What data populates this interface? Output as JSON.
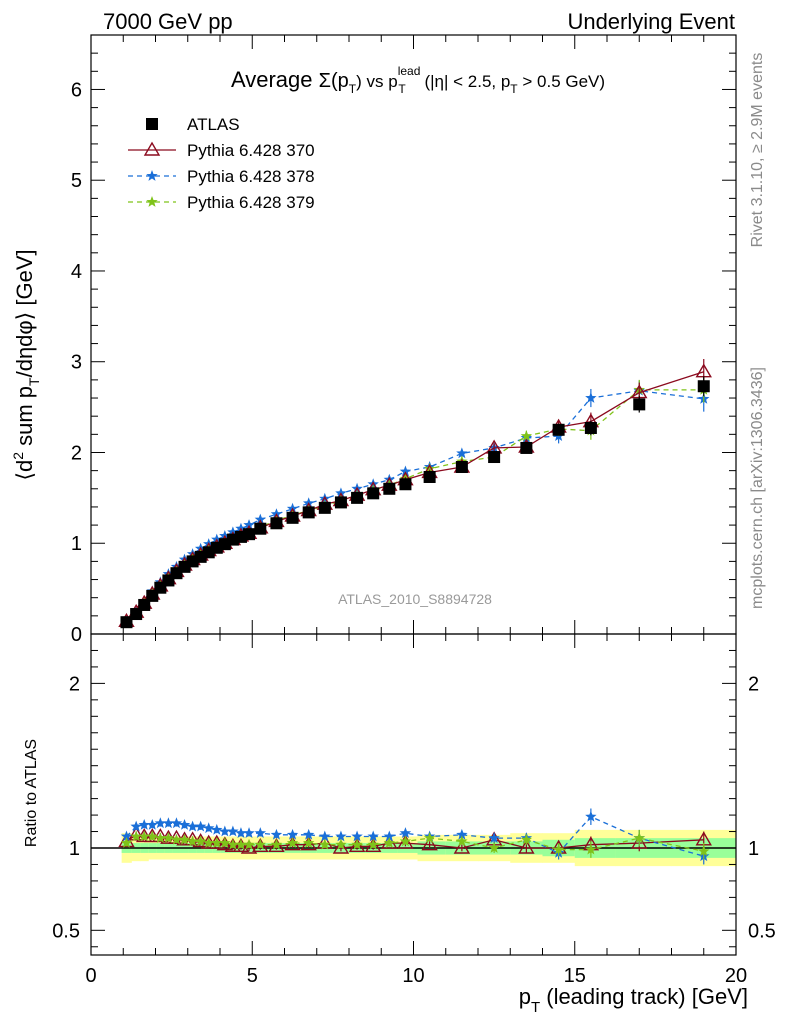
{
  "header": {
    "left": "7000 GeV pp",
    "right": "Underlying Event"
  },
  "title": {
    "prefix": "Average",
    "sigma": "Σ(p",
    "sub_t": "T",
    "close": ")",
    "vs": " vs p",
    "sup_lead": "lead",
    "sub_t2": "T",
    "cond_a": " (|η| < 2.5, p",
    "sub_t3": "T",
    "cond_b": " > 0.5 GeV)"
  },
  "ylabel_main": {
    "a": "⟨d",
    "sup2": "2",
    "b": " sum p",
    "subT": "T",
    "c": "/dηdφ⟩ [GeV]"
  },
  "ylabel_ratio": "Ratio to ATLAS",
  "xlabel": {
    "p": "p",
    "subT": "T",
    "rest": " (leading track) [GeV]"
  },
  "side_right": "Rivet 3.1.10, ≥ 2.9M events",
  "side_right2": "mcplots.cern.ch [arXiv:1306.3436]",
  "analysis_id": "ATLAS_2010_S8894728",
  "legend": [
    {
      "name": "ATLAS",
      "color": "#000000",
      "marker": "square",
      "dash": "none"
    },
    {
      "name": "Pythia 6.428 370",
      "color": "#8b0a1e",
      "marker": "triangle",
      "dash": "solid"
    },
    {
      "name": "Pythia 6.428 378",
      "color": "#1a6fd8",
      "marker": "star",
      "dash": "dashed"
    },
    {
      "name": "Pythia 6.428 379",
      "color": "#7fc31a",
      "marker": "star",
      "dash": "dashed"
    }
  ],
  "chart_data": {
    "type": "line",
    "x": [
      1.1,
      1.4,
      1.65,
      1.9,
      2.15,
      2.4,
      2.65,
      2.9,
      3.15,
      3.4,
      3.65,
      3.9,
      4.15,
      4.4,
      4.65,
      4.9,
      5.25,
      5.75,
      6.25,
      6.75,
      7.25,
      7.75,
      8.25,
      8.75,
      9.25,
      9.75,
      10.5,
      11.5,
      12.5,
      13.5,
      14.5,
      15.5,
      17.0,
      19.0
    ],
    "xlim": [
      0,
      20
    ],
    "main": {
      "ylim": [
        0,
        6.6
      ],
      "yticks": [
        0,
        1,
        2,
        3,
        4,
        5,
        6
      ],
      "series": [
        {
          "name": "ATLAS",
          "values": [
            0.13,
            0.22,
            0.32,
            0.42,
            0.51,
            0.59,
            0.67,
            0.74,
            0.8,
            0.85,
            0.9,
            0.95,
            0.99,
            1.04,
            1.07,
            1.1,
            1.16,
            1.22,
            1.28,
            1.34,
            1.39,
            1.45,
            1.5,
            1.55,
            1.6,
            1.65,
            1.73,
            1.84,
            1.95,
            2.05,
            2.25,
            2.27,
            2.53,
            2.73
          ],
          "err": [
            0.01,
            0.01,
            0.01,
            0.01,
            0.01,
            0.01,
            0.01,
            0.01,
            0.01,
            0.01,
            0.01,
            0.01,
            0.01,
            0.01,
            0.01,
            0.01,
            0.01,
            0.01,
            0.01,
            0.01,
            0.01,
            0.01,
            0.01,
            0.01,
            0.02,
            0.02,
            0.02,
            0.03,
            0.04,
            0.05,
            0.06,
            0.08,
            0.09,
            0.11
          ]
        },
        {
          "name": "Pythia 6.428 370",
          "values": [
            0.14,
            0.24,
            0.34,
            0.44,
            0.53,
            0.61,
            0.69,
            0.76,
            0.82,
            0.87,
            0.92,
            0.96,
            1.0,
            1.04,
            1.08,
            1.11,
            1.17,
            1.24,
            1.3,
            1.36,
            1.43,
            1.47,
            1.53,
            1.59,
            1.64,
            1.7,
            1.78,
            1.84,
            2.05,
            2.06,
            2.28,
            2.34,
            2.66,
            2.89
          ],
          "err": [
            0.01,
            0.01,
            0.01,
            0.01,
            0.01,
            0.01,
            0.01,
            0.01,
            0.01,
            0.01,
            0.01,
            0.01,
            0.01,
            0.01,
            0.01,
            0.01,
            0.01,
            0.01,
            0.01,
            0.01,
            0.02,
            0.02,
            0.02,
            0.02,
            0.02,
            0.03,
            0.03,
            0.04,
            0.05,
            0.06,
            0.08,
            0.1,
            0.11,
            0.14
          ]
        },
        {
          "name": "Pythia 6.428 378",
          "values": [
            0.14,
            0.25,
            0.36,
            0.47,
            0.57,
            0.66,
            0.74,
            0.82,
            0.88,
            0.94,
            0.99,
            1.04,
            1.08,
            1.12,
            1.16,
            1.2,
            1.26,
            1.32,
            1.38,
            1.44,
            1.49,
            1.55,
            1.6,
            1.65,
            1.7,
            1.79,
            1.84,
            1.99,
            2.05,
            2.16,
            2.18,
            2.6,
            2.68,
            2.59
          ],
          "err": [
            0.01,
            0.01,
            0.01,
            0.01,
            0.01,
            0.01,
            0.01,
            0.01,
            0.01,
            0.01,
            0.01,
            0.01,
            0.01,
            0.01,
            0.01,
            0.01,
            0.01,
            0.01,
            0.01,
            0.01,
            0.02,
            0.02,
            0.02,
            0.02,
            0.02,
            0.03,
            0.03,
            0.04,
            0.05,
            0.06,
            0.08,
            0.1,
            0.11,
            0.14
          ]
        },
        {
          "name": "Pythia 6.428 379",
          "values": [
            0.13,
            0.23,
            0.34,
            0.44,
            0.53,
            0.62,
            0.69,
            0.76,
            0.83,
            0.88,
            0.93,
            0.97,
            1.01,
            1.05,
            1.09,
            1.12,
            1.18,
            1.25,
            1.31,
            1.36,
            1.41,
            1.47,
            1.52,
            1.58,
            1.64,
            1.71,
            1.82,
            1.9,
            1.95,
            2.18,
            2.26,
            2.24,
            2.69,
            2.69
          ],
          "err": [
            0.01,
            0.01,
            0.01,
            0.01,
            0.01,
            0.01,
            0.01,
            0.01,
            0.01,
            0.01,
            0.01,
            0.01,
            0.01,
            0.01,
            0.01,
            0.01,
            0.01,
            0.01,
            0.01,
            0.01,
            0.02,
            0.02,
            0.02,
            0.02,
            0.02,
            0.03,
            0.03,
            0.04,
            0.05,
            0.06,
            0.08,
            0.1,
            0.11,
            0.14
          ]
        }
      ]
    },
    "ratio": {
      "ylim": [
        0.35,
        2.3
      ],
      "yticks": [
        0.5,
        1,
        2
      ],
      "band_stat_halfwidth": [
        0.03,
        0.03,
        0.03,
        0.03,
        0.03,
        0.03,
        0.03,
        0.03,
        0.03,
        0.03,
        0.03,
        0.03,
        0.03,
        0.03,
        0.03,
        0.03,
        0.03,
        0.03,
        0.03,
        0.03,
        0.03,
        0.03,
        0.03,
        0.03,
        0.03,
        0.03,
        0.04,
        0.04,
        0.04,
        0.04,
        0.05,
        0.06,
        0.06,
        0.06
      ],
      "band_syst_halfwidth": [
        0.09,
        0.08,
        0.08,
        0.07,
        0.07,
        0.07,
        0.07,
        0.07,
        0.07,
        0.07,
        0.07,
        0.07,
        0.07,
        0.07,
        0.07,
        0.07,
        0.07,
        0.07,
        0.07,
        0.07,
        0.07,
        0.07,
        0.07,
        0.07,
        0.07,
        0.07,
        0.08,
        0.08,
        0.08,
        0.09,
        0.09,
        0.11,
        0.11,
        0.11
      ],
      "series": [
        {
          "name": "Pythia 6.428 370",
          "values": [
            1.04,
            1.08,
            1.07,
            1.07,
            1.07,
            1.06,
            1.06,
            1.05,
            1.05,
            1.04,
            1.03,
            1.03,
            1.02,
            1.01,
            1.01,
            1.0,
            1.01,
            1.01,
            1.02,
            1.02,
            1.03,
            1.0,
            1.01,
            1.01,
            1.03,
            1.03,
            1.02,
            1.0,
            1.05,
            1.0,
            1.0,
            1.02,
            1.03,
            1.05
          ],
          "err": [
            0.02,
            0.02,
            0.02,
            0.02,
            0.02,
            0.02,
            0.02,
            0.02,
            0.02,
            0.02,
            0.02,
            0.02,
            0.02,
            0.02,
            0.02,
            0.02,
            0.02,
            0.02,
            0.02,
            0.02,
            0.02,
            0.02,
            0.02,
            0.02,
            0.02,
            0.02,
            0.02,
            0.02,
            0.03,
            0.03,
            0.04,
            0.05,
            0.05,
            0.05
          ]
        },
        {
          "name": "Pythia 6.428 378",
          "values": [
            1.07,
            1.13,
            1.14,
            1.14,
            1.15,
            1.15,
            1.15,
            1.14,
            1.13,
            1.13,
            1.12,
            1.11,
            1.1,
            1.1,
            1.09,
            1.09,
            1.09,
            1.08,
            1.08,
            1.08,
            1.07,
            1.07,
            1.07,
            1.07,
            1.07,
            1.09,
            1.07,
            1.08,
            1.06,
            1.06,
            0.97,
            1.19,
            1.06,
            0.95
          ],
          "err": [
            0.02,
            0.02,
            0.02,
            0.02,
            0.02,
            0.02,
            0.02,
            0.02,
            0.02,
            0.02,
            0.02,
            0.02,
            0.02,
            0.02,
            0.02,
            0.02,
            0.02,
            0.02,
            0.02,
            0.02,
            0.02,
            0.02,
            0.02,
            0.02,
            0.02,
            0.02,
            0.02,
            0.02,
            0.03,
            0.03,
            0.04,
            0.05,
            0.05,
            0.05
          ]
        },
        {
          "name": "Pythia 6.428 379",
          "values": [
            1.03,
            1.07,
            1.07,
            1.07,
            1.06,
            1.06,
            1.05,
            1.05,
            1.04,
            1.04,
            1.03,
            1.03,
            1.03,
            1.02,
            1.02,
            1.02,
            1.02,
            1.02,
            1.03,
            1.03,
            1.02,
            1.02,
            1.02,
            1.02,
            1.03,
            1.04,
            1.06,
            1.04,
            1.0,
            1.05,
            0.99,
            0.99,
            1.06,
            0.98
          ],
          "err": [
            0.02,
            0.02,
            0.02,
            0.02,
            0.02,
            0.02,
            0.02,
            0.02,
            0.02,
            0.02,
            0.02,
            0.02,
            0.02,
            0.02,
            0.02,
            0.02,
            0.02,
            0.02,
            0.02,
            0.02,
            0.02,
            0.02,
            0.02,
            0.02,
            0.02,
            0.02,
            0.02,
            0.02,
            0.03,
            0.03,
            0.04,
            0.05,
            0.05,
            0.05
          ]
        }
      ]
    },
    "band_colors": {
      "syst": "#ffff99",
      "stat": "#99ff99"
    }
  }
}
